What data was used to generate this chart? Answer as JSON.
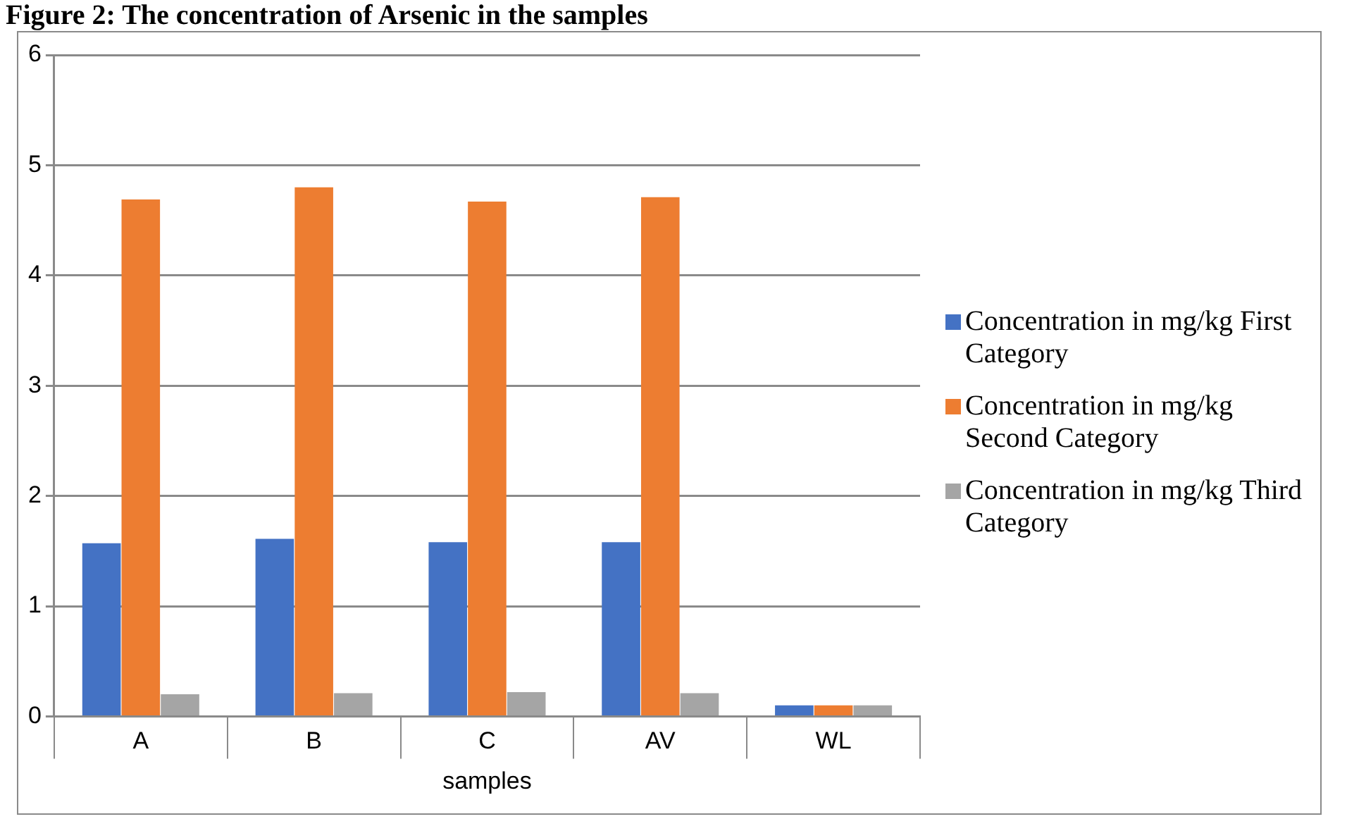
{
  "chart_data": {
    "type": "bar",
    "title": "Figure 2: The concentration of Arsenic in the samples",
    "xlabel": "samples",
    "categories": [
      "A",
      "B",
      "C",
      "AV",
      "WL"
    ],
    "series": [
      {
        "name": "Concentration in mg/kg First Category",
        "color": "#4472c4",
        "values": [
          1.57,
          1.61,
          1.58,
          1.58,
          0.1
        ]
      },
      {
        "name": "Concentration in mg/kg Second Category",
        "color": "#ed7d31",
        "values": [
          4.69,
          4.8,
          4.67,
          4.71,
          0.1
        ]
      },
      {
        "name": "Concentration in mg/kg Third Category",
        "color": "#a5a5a5",
        "values": [
          0.2,
          0.21,
          0.22,
          0.21,
          0.1
        ]
      }
    ],
    "ylim": [
      0,
      6
    ],
    "yticks": [
      0,
      1,
      2,
      3,
      4,
      5,
      6
    ],
    "grid": "y",
    "legend": "right"
  }
}
